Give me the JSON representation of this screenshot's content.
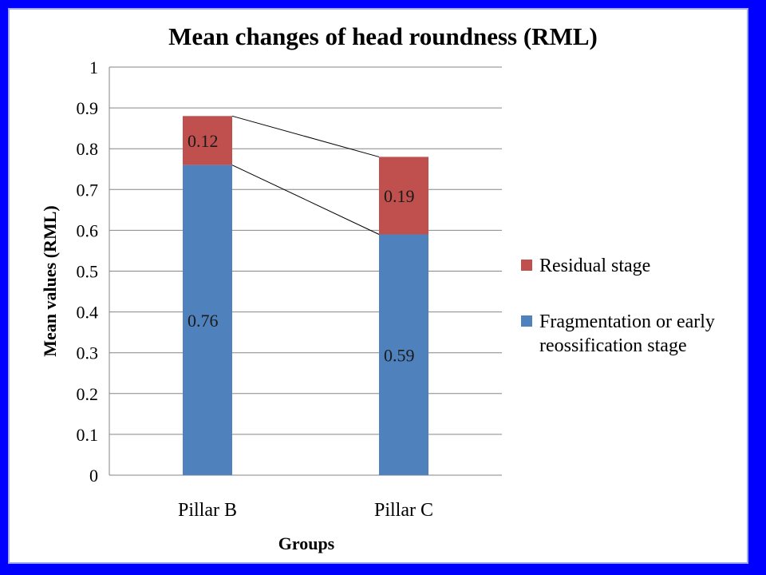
{
  "chart_data": {
    "type": "bar",
    "stacked": true,
    "title": "Mean changes of head roundness (RML)",
    "xlabel": "Groups",
    "ylabel": "Mean values (RML)",
    "categories": [
      "Pillar B",
      "Pillar C"
    ],
    "ylim": [
      0,
      1
    ],
    "yticks": [
      "0",
      "0.1",
      "0.2",
      "0.3",
      "0.4",
      "0.5",
      "0.6",
      "0.7",
      "0.8",
      "0.9",
      "1"
    ],
    "grid": true,
    "legend_position": "right",
    "series": [
      {
        "name": "Fragmentation or early reossification stage",
        "legend_lines": [
          "Fragmentation or early",
          "reossification stage"
        ],
        "values": [
          0.76,
          0.59
        ],
        "labels": [
          "0.76",
          "0.59"
        ],
        "color": "#4f81bd"
      },
      {
        "name": "Residual stage",
        "legend_lines": [
          "Residual stage"
        ],
        "values": [
          0.12,
          0.19
        ],
        "labels": [
          "0.12",
          "0.19"
        ],
        "color": "#c0504d"
      }
    ],
    "series_lines": true
  },
  "colors": {
    "page_background": "#0000ff",
    "chart_background": "#ffffff",
    "gridline": "#868686"
  }
}
